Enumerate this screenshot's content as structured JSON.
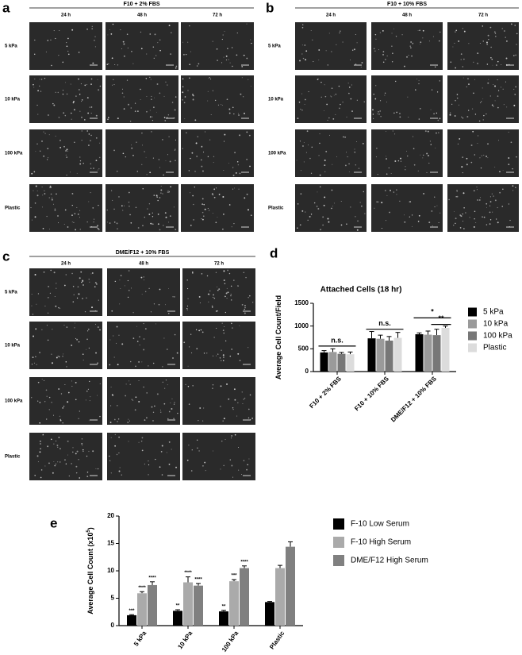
{
  "panels": [
    {
      "letter": "a",
      "title": "F10 + 2% FBS",
      "columns": [
        "24 h",
        "48 h",
        "72 h"
      ],
      "rows": [
        "5 kPa",
        "10 kPa",
        "100 kPa",
        "Plastic"
      ]
    },
    {
      "letter": "b",
      "title": "F10 + 10% FBS",
      "columns": [
        "24 h",
        "48 h",
        "72 h"
      ],
      "rows": [
        "5 kPa",
        "10 kPa",
        "100 kPa",
        "Plastic"
      ]
    },
    {
      "letter": "c",
      "title": "DME/F12 + 10% FBS",
      "columns": [
        "24 h",
        "48 h",
        "72 h"
      ],
      "rows": [
        "5 kPa",
        "10 kPa",
        "100 kPa",
        "Plastic"
      ]
    }
  ],
  "chart_data": [
    {
      "type": "bar",
      "panel_label": "d",
      "title": "Attached  Cells (18 hr)",
      "y_label": "Average Cell Count/Field",
      "categories": [
        "F10 + 2% FBS",
        "F10 + 10% FBS",
        "DME/F12 + 10% FBS"
      ],
      "series": [
        {
          "name": "5 kPa",
          "color": "#000000",
          "values": [
            420,
            730,
            820
          ],
          "errors": [
            40,
            150,
            30
          ]
        },
        {
          "name": "10 kPa",
          "color": "#9a9a9a",
          "values": [
            430,
            720,
            810
          ],
          "errors": [
            70,
            80,
            80
          ]
        },
        {
          "name": "100 kPa",
          "color": "#777777",
          "values": [
            390,
            680,
            800
          ],
          "errors": [
            30,
            90,
            130
          ]
        },
        {
          "name": "Plastic",
          "color": "#dcdcdc",
          "values": [
            380,
            740,
            960
          ],
          "errors": [
            50,
            120,
            40
          ]
        }
      ],
      "ylim": [
        0,
        1500
      ],
      "yticks": [
        0,
        500,
        1000,
        1500
      ],
      "annotations": [
        "n.s.",
        "n.s.",
        "*",
        "**"
      ]
    },
    {
      "type": "bar",
      "panel_label": "e",
      "y_label": "Average Cell  Count (x10",
      "y_label_sup": "5",
      "y_label_end": ")",
      "categories": [
        "5 kPa",
        "10 kPa",
        "100 kPa",
        "Plastic"
      ],
      "series": [
        {
          "name": "F-10 Low Serum",
          "color": "#000000",
          "values": [
            1.9,
            2.7,
            2.6,
            4.3
          ],
          "errors": [
            0.1,
            0.2,
            0.2,
            0.1
          ],
          "significance": [
            "***",
            "**",
            "**",
            null
          ]
        },
        {
          "name": "F-10 High Serum",
          "color": "#aaaaaa",
          "values": [
            5.9,
            7.9,
            8.1,
            10.5
          ],
          "errors": [
            0.3,
            1.0,
            0.3,
            0.5
          ],
          "significance": [
            "****",
            "****",
            "***",
            null
          ]
        },
        {
          "name": "DME/F12 High Serum",
          "color": "#808080",
          "values": [
            7.4,
            7.3,
            10.5,
            14.4
          ],
          "errors": [
            0.6,
            0.4,
            0.4,
            0.9
          ],
          "significance": [
            "****",
            "****",
            "****",
            null
          ]
        }
      ],
      "ylim": [
        0,
        20
      ],
      "yticks": [
        0,
        5,
        10,
        15,
        20
      ]
    }
  ]
}
